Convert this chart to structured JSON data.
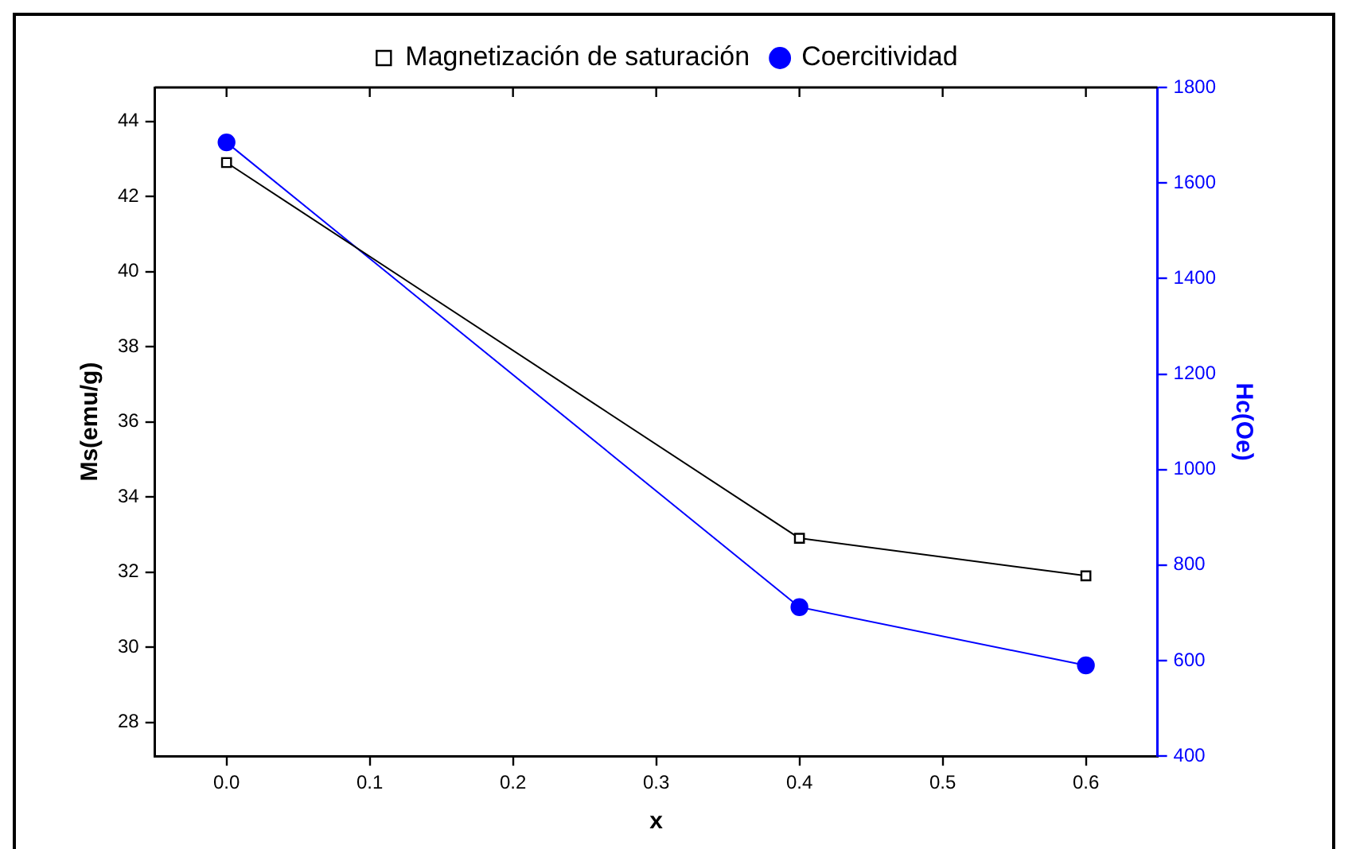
{
  "chart_data": {
    "type": "line",
    "xlabel": "x",
    "ylabel": "Ms(emu/g)",
    "y2label": "Hc(Oe)",
    "x": [
      0.0,
      0.4,
      0.6
    ],
    "series": [
      {
        "name": "Magnetización de saturación",
        "color": "#000000",
        "values": [
          42.9,
          32.9,
          31.9
        ],
        "marker": "square"
      },
      {
        "name": "Coercitividad",
        "color": "#0000ff",
        "values": [
          1685,
          712,
          590
        ],
        "axis": "y2",
        "marker": "circle"
      }
    ],
    "xlim": [
      -0.05,
      0.65
    ],
    "xticks": [
      {
        "value": 0,
        "label": "0.0"
      },
      0.1,
      0.2,
      0.3,
      0.4,
      0.5,
      0.6
    ],
    "ylim": [
      27.1,
      44.9
    ],
    "yticks": [
      28,
      30,
      32,
      34,
      36,
      38,
      40,
      42,
      44
    ],
    "y2lim": [
      400,
      1800
    ],
    "y2ticks": [
      400,
      600,
      800,
      1000,
      1200,
      1400,
      1600,
      1800
    ],
    "grid": false,
    "legend": "top",
    "line_style": "solid"
  }
}
